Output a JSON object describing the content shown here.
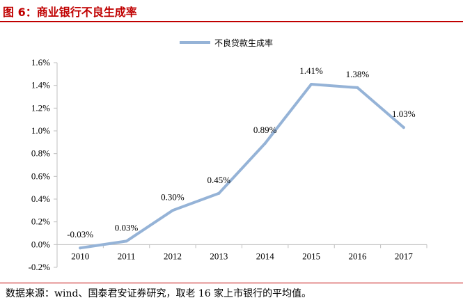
{
  "figure": {
    "title": "图 6：商业银行不良生成率",
    "source": "数据来源：wind、国泰君安证券研究，取老 16 家上市银行的平均值。"
  },
  "colors": {
    "title": "#c00000",
    "series_line": "#95b3d7",
    "axis": "#bfbfbf"
  },
  "chart_data": {
    "type": "line",
    "categories": [
      "2010",
      "2011",
      "2012",
      "2013",
      "2014",
      "2015",
      "2016",
      "2017"
    ],
    "series": [
      {
        "name": "不良贷款生成率",
        "values": [
          -0.03,
          0.03,
          0.3,
          0.45,
          0.89,
          1.41,
          1.38,
          1.03
        ],
        "labels": [
          "-0.03%",
          "0.03%",
          "0.30%",
          "0.45%",
          "0.89%",
          "1.41%",
          "1.38%",
          "1.03%"
        ]
      }
    ],
    "ylim": [
      -0.2,
      1.6
    ],
    "yticks": [
      -0.2,
      0.0,
      0.2,
      0.4,
      0.6,
      0.8,
      1.0,
      1.2,
      1.4,
      1.6
    ],
    "ytick_labels": [
      "-0.2%",
      "0.0%",
      "0.2%",
      "0.4%",
      "0.6%",
      "0.8%",
      "1.0%",
      "1.2%",
      "1.4%",
      "1.6%"
    ],
    "grid": false,
    "legend_position": "top-center",
    "title": "",
    "xlabel": "",
    "ylabel": ""
  }
}
